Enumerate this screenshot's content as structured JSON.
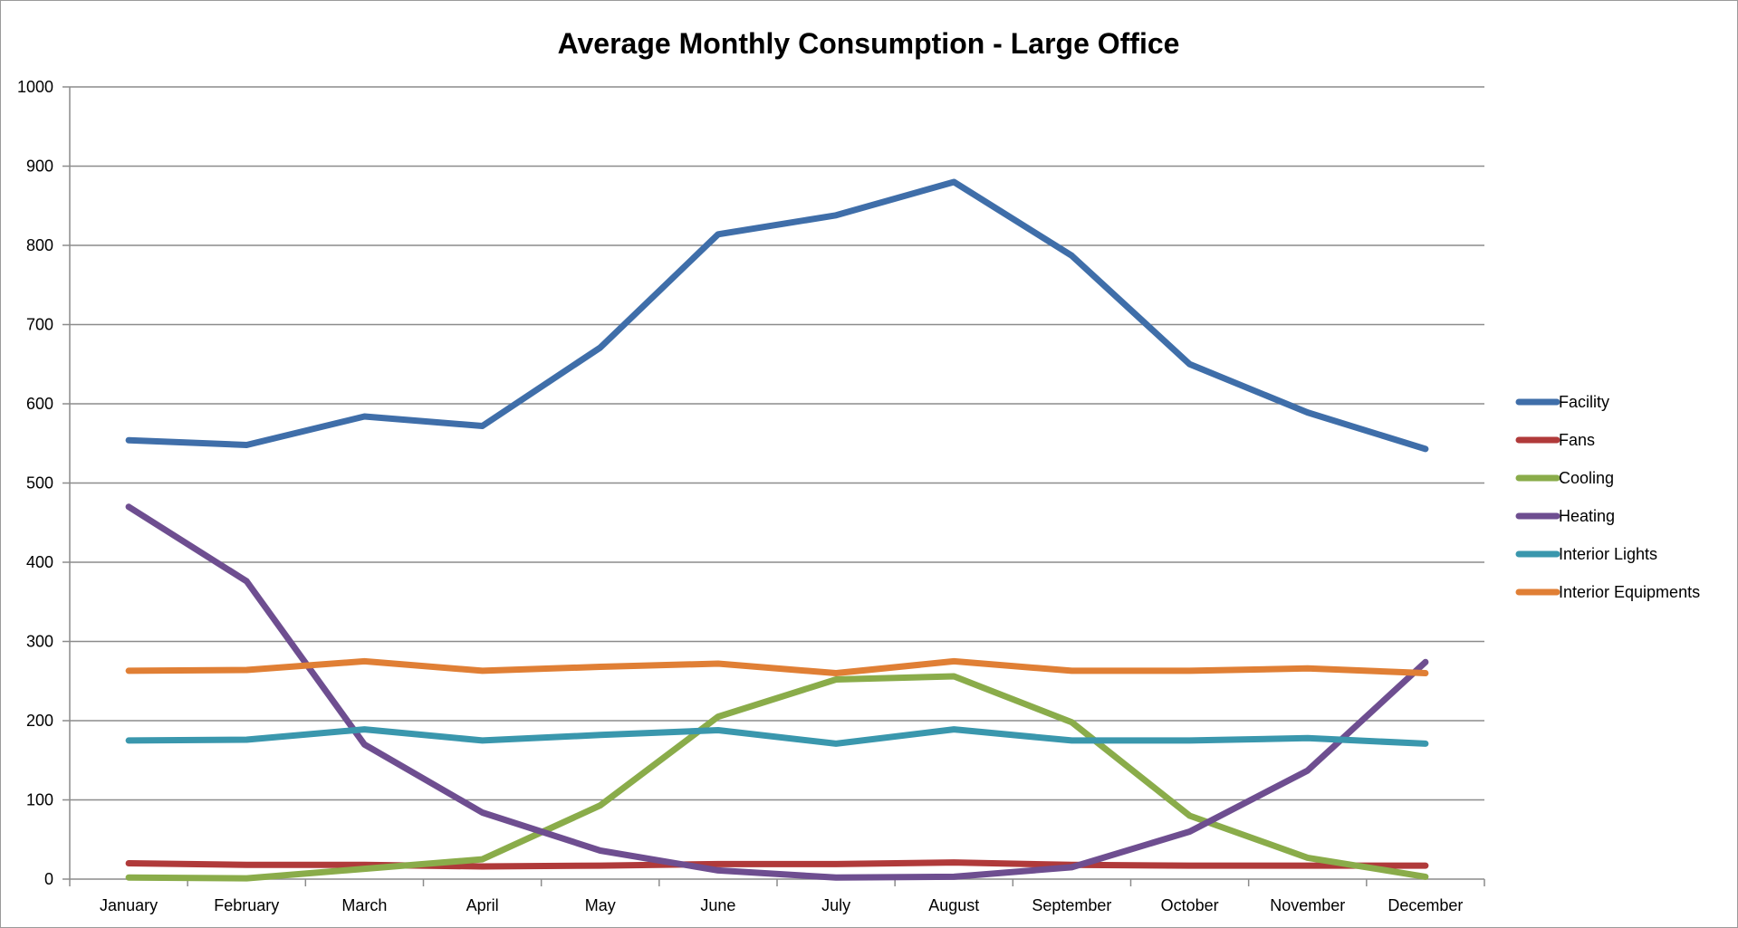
{
  "chart_data": {
    "type": "line",
    "title": "Average Monthly Consumption - Large Office",
    "xlabel": "",
    "ylabel": "",
    "ylim": [
      0,
      1000
    ],
    "yticks": [
      "0",
      "100",
      "200",
      "300",
      "400",
      "500",
      "600",
      "700",
      "800",
      "900",
      "1000"
    ],
    "grid": true,
    "legend_position": "right",
    "categories": [
      "January",
      "February",
      "March",
      "April",
      "May",
      "June",
      "July",
      "August",
      "September",
      "October",
      "November",
      "December"
    ],
    "series": [
      {
        "name": "Facility",
        "color": "#3f6ea9",
        "values": [
          554,
          548,
          584,
          572,
          671,
          814,
          838,
          880,
          787,
          650,
          589,
          543
        ]
      },
      {
        "name": "Fans",
        "color": "#b03a3a",
        "values": [
          20,
          18,
          18,
          16,
          17,
          19,
          19,
          21,
          18,
          17,
          17,
          17
        ]
      },
      {
        "name": "Cooling",
        "color": "#8aac4a",
        "values": [
          2,
          1,
          13,
          25,
          93,
          205,
          252,
          256,
          198,
          80,
          27,
          3
        ]
      },
      {
        "name": "Heating",
        "color": "#6e4e90",
        "values": [
          470,
          376,
          170,
          84,
          36,
          11,
          2,
          3,
          15,
          60,
          137,
          274
        ]
      },
      {
        "name": "Interior Lights",
        "color": "#3a97ad",
        "values": [
          175,
          176,
          189,
          175,
          182,
          188,
          171,
          189,
          175,
          175,
          178,
          171
        ]
      },
      {
        "name": "Interior Equipments",
        "color": "#e07f35",
        "values": [
          263,
          264,
          275,
          263,
          268,
          272,
          260,
          275,
          263,
          263,
          266,
          260
        ]
      }
    ]
  }
}
